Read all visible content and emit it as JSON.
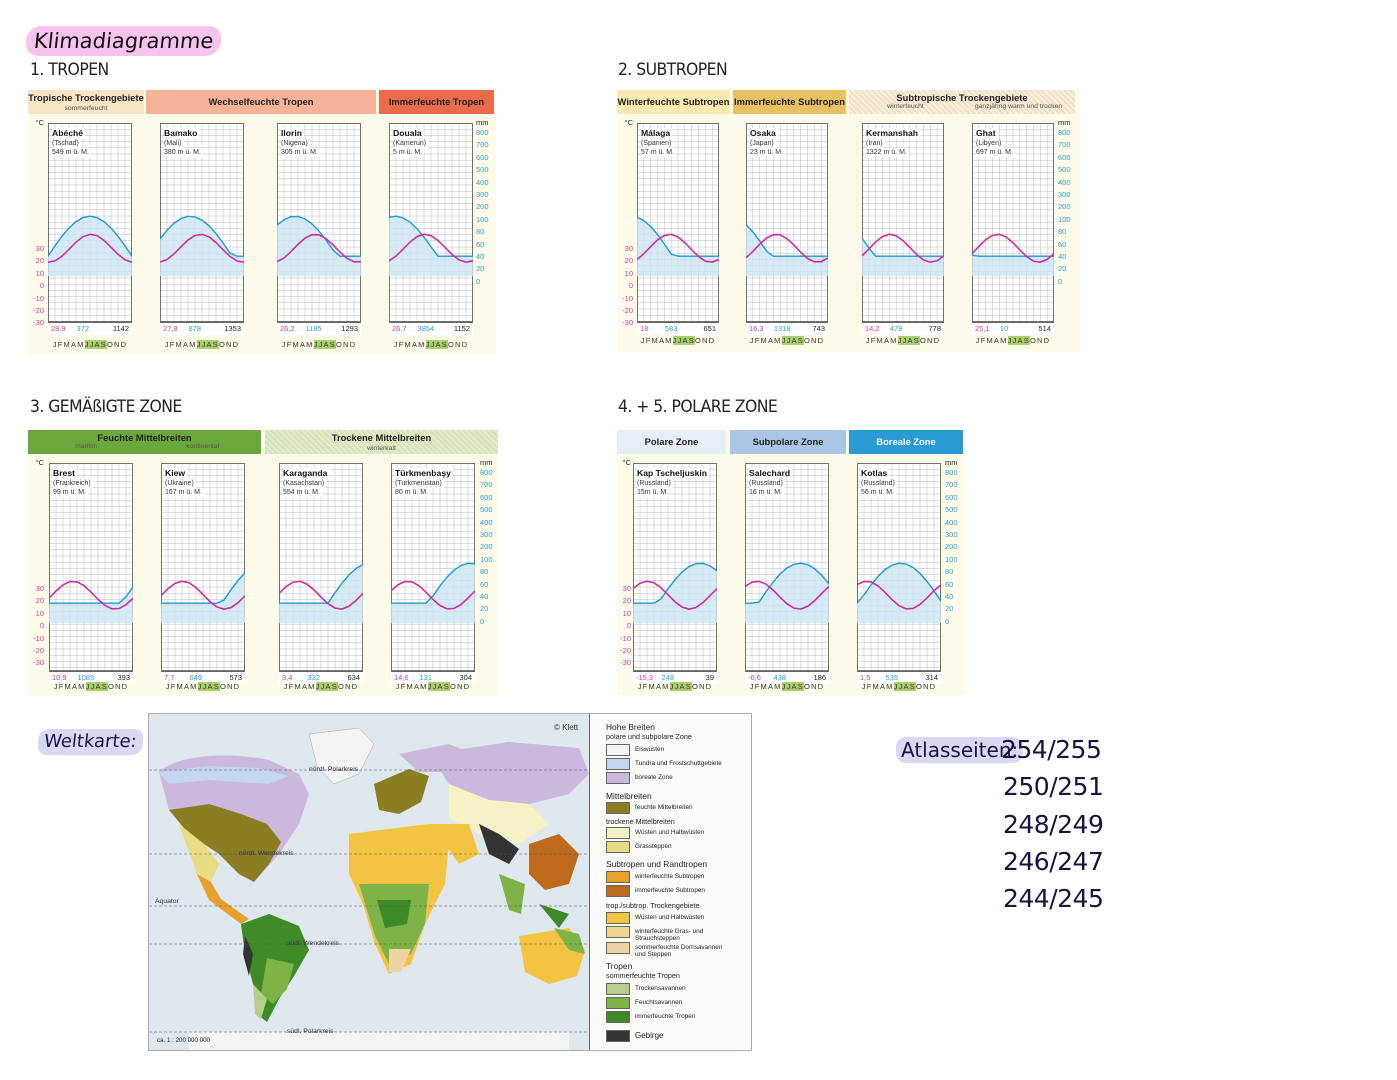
{
  "page_title": "Klimadiagramme",
  "sections": {
    "tropen": "1. TROPEN",
    "subtropen": "2. SUBTROPEN",
    "gemaessigt": "3. GEMÄßIGTE ZONE",
    "polar": "4. + 5. POLARE ZONE"
  },
  "units": {
    "temp": "°C",
    "precip": "mm"
  },
  "temp_ticks": [
    "30",
    "20",
    "10",
    "0",
    "-10",
    "-20",
    "-30"
  ],
  "precip_ticks": [
    "800",
    "700",
    "600",
    "500",
    "400",
    "300",
    "200",
    "100",
    "80",
    "60",
    "40",
    "20",
    "0"
  ],
  "months_label": "J F M A M J J A S O N D",
  "colors": {
    "precip_fill": "#cde6f5",
    "precip_line": "#1a9ad6",
    "temp_line": "#d42a9f",
    "grid": "#b9b9b9"
  },
  "panels": {
    "tropen": {
      "headers": [
        {
          "label": "Tropische Trockengebiete",
          "sub": "sommerfeucht",
          "color": "#f6e6c5"
        },
        {
          "label": "Wechselfeuchte Tropen",
          "sub": "",
          "color": "#f6b39a"
        },
        {
          "label": "Immerfeuchte Tropen",
          "sub": "",
          "color": "#ea6b4b"
        }
      ],
      "stations": [
        {
          "name": "Abéché",
          "country": "(Tschad)",
          "elev": "549 m ü. M.",
          "t": "28,9",
          "p": "372",
          "s": "1142"
        },
        {
          "name": "Bamako",
          "country": "(Mali)",
          "elev": "380 m ü. M.",
          "t": "27,8",
          "p": "878",
          "s": "1353"
        },
        {
          "name": "Ilorin",
          "country": "(Nigeria)",
          "elev": "305 m ü. M.",
          "t": "26,2",
          "p": "1185",
          "s": "1293"
        },
        {
          "name": "Douala",
          "country": "(Kamerun)",
          "elev": "5 m ü. M.",
          "t": "26,7",
          "p": "3854",
          "s": "1152"
        }
      ]
    },
    "subtropen": {
      "headers": [
        {
          "label": "Winterfeuchte Subtropen",
          "sub": "",
          "color": "#fbe9b2"
        },
        {
          "label": "Immerfeuchte Subtropen",
          "sub": "",
          "color": "#e8c163"
        },
        {
          "label": "Subtropische Trockengebiete",
          "sub_left": "winterfeucht",
          "sub_right": "ganzjährig warm und trocken",
          "color": "#fcefd8"
        }
      ],
      "stations": [
        {
          "name": "Málaga",
          "country": "(Spanien)",
          "elev": "57 m ü. M.",
          "t": "18",
          "p": "583",
          "s": "651"
        },
        {
          "name": "Osaka",
          "country": "(Japan)",
          "elev": "23 m ü. M.",
          "t": "16,3",
          "p": "1318",
          "s": "743"
        },
        {
          "name": "Kermanshah",
          "country": "(Iran)",
          "elev": "1322 m ü. M.",
          "t": "14,2",
          "p": "479",
          "s": "778"
        },
        {
          "name": "Ghat",
          "country": "(Libyen)",
          "elev": "697 m ü. M.",
          "t": "25,1",
          "p": "10",
          "s": "514"
        }
      ]
    },
    "gemaessigt": {
      "headers": [
        {
          "label": "Feuchte Mittelbreiten",
          "sub_left": "maritim",
          "sub_right": "kontinental",
          "color": "#6aa83c"
        },
        {
          "label": "Trockene Mittelbreiten",
          "sub": "winterkalt",
          "color": "#e2eec8"
        }
      ],
      "stations": [
        {
          "name": "Brest",
          "country": "(Frankreich)",
          "elev": "99 m ü. M.",
          "t": "10,9",
          "p": "1085",
          "s": "393"
        },
        {
          "name": "Kiew",
          "country": "(Ukraine)",
          "elev": "167 m ü. M.",
          "t": "7,7",
          "p": "649",
          "s": "573"
        },
        {
          "name": "Karaganda",
          "country": "(Kasachstan)",
          "elev": "554 m ü. M.",
          "t": "3,4",
          "p": "332",
          "s": "634"
        },
        {
          "name": "Türkmenbaşy",
          "country": "(Turkmenistan)",
          "elev": "80 m ü. M.",
          "t": "14,6",
          "p": "131",
          "s": "304"
        }
      ]
    },
    "polar": {
      "headers": [
        {
          "label": "Polare Zone",
          "sub": "",
          "color": "#e6eef7"
        },
        {
          "label": "Subpolare Zone",
          "sub": "",
          "color": "#a9c6e6"
        },
        {
          "label": "Boreale Zone",
          "sub": "",
          "color": "#2a9ad3"
        }
      ],
      "stations": [
        {
          "name": "Kap Tscheljuskin",
          "country": "(Russland)",
          "elev": "15m ü. M.",
          "t": "-15,3",
          "p": "248",
          "s": "39"
        },
        {
          "name": "Salechard",
          "country": "(Russland)",
          "elev": "16 m ü. M.",
          "t": "-6,6",
          "p": "438",
          "s": "186"
        },
        {
          "name": "Kotlas",
          "country": "(Russland)",
          "elev": "56 m ü. M.",
          "t": "1,5",
          "p": "535",
          "s": "314"
        }
      ]
    }
  },
  "weltkarte": {
    "label": "Weltkarte:",
    "publisher": "© Klett",
    "scale": "ca. 1 : 200 000 000",
    "map_labels": [
      "nördl. Polarkreis",
      "nördl. Wendekreis",
      "Äquator",
      "südl. Wendekreis",
      "südl. Polarkreis"
    ],
    "legend": {
      "hohe_breiten": "Hohe Breiten",
      "hohe_breiten_sub": "polare und subpolare Zone",
      "items_hohe": [
        {
          "label": "Eiswüsten",
          "color": "#f4f4f2"
        },
        {
          "label": "Tundra und Frostschuttgebiete",
          "color": "#c4d7ee"
        },
        {
          "label": "boreale Zone",
          "color": "#cbb8dc"
        }
      ],
      "mittelbreiten": "Mittelbreiten",
      "items_mittel_1": [
        {
          "label": "feuchte Mittelbreiten",
          "color": "#8a7d22"
        }
      ],
      "trockene_mittelbreiten": "trockene Mittelbreiten",
      "items_mittel_2": [
        {
          "label": "Wüsten und Halbwüsten",
          "color": "#f6f2c6"
        },
        {
          "label": "Grassteppen",
          "color": "#e9dc82"
        }
      ],
      "subtropen": "Subtropen und Randtropen",
      "items_sub_1": [
        {
          "label": "winterfeuchte Subtropen",
          "color": "#e7a12b"
        },
        {
          "label": "immerfeuchte Subtropen",
          "color": "#bd6a1d"
        }
      ],
      "trop_subtrop": "trop./subtrop. Trockengebiete",
      "items_sub_2": [
        {
          "label": "Wüsten und Halbwüsten",
          "color": "#f3c342"
        },
        {
          "label": "winterfeuchte Gras- und Strauchsteppen",
          "color": "#f0d58c"
        },
        {
          "label": "sommerfeuchte Dornsavannen und Steppen",
          "color": "#efd3a3"
        }
      ],
      "tropen": "Tropen",
      "tropen_sub": "sommerfeuchte Tropen",
      "items_tropen": [
        {
          "label": "Trockensavannen",
          "color": "#b7cd8a"
        },
        {
          "label": "Feuchtsavannen",
          "color": "#7db347"
        },
        {
          "label": "immerfeuchte Tropen",
          "color": "#3d8a27"
        }
      ],
      "gebirge": {
        "label": "Gebirge",
        "color": "#333333"
      }
    }
  },
  "atlas": {
    "label": "Atlasseiten:",
    "pages": [
      "254/255",
      "250/251",
      "248/249",
      "246/247",
      "244/245"
    ]
  }
}
